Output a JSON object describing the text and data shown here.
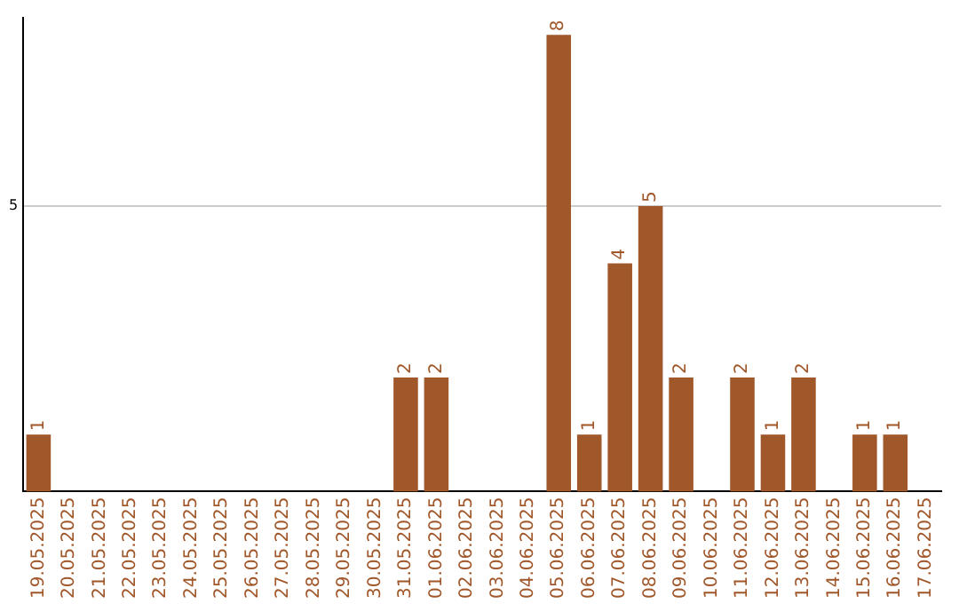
{
  "chart_data": {
    "type": "bar",
    "categories": [
      "19.05.2025",
      "20.05.2025",
      "21.05.2025",
      "22.05.2025",
      "23.05.2025",
      "24.05.2025",
      "25.05.2025",
      "26.05.2025",
      "27.05.2025",
      "28.05.2025",
      "29.05.2025",
      "30.05.2025",
      "31.05.2025",
      "01.06.2025",
      "02.06.2025",
      "03.06.2025",
      "04.06.2025",
      "05.06.2025",
      "06.06.2025",
      "07.06.2025",
      "08.06.2025",
      "09.06.2025",
      "10.06.2025",
      "11.06.2025",
      "12.06.2025",
      "13.06.2025",
      "14.06.2025",
      "15.06.2025",
      "16.06.2025",
      "17.06.2025"
    ],
    "values": [
      1,
      0,
      0,
      0,
      0,
      0,
      0,
      0,
      0,
      0,
      0,
      0,
      2,
      2,
      0,
      0,
      0,
      8,
      1,
      4,
      5,
      2,
      0,
      2,
      1,
      2,
      0,
      1,
      1,
      0
    ],
    "value_labels": [
      "1",
      null,
      null,
      null,
      null,
      null,
      null,
      null,
      null,
      null,
      null,
      null,
      "2",
      "2",
      null,
      null,
      null,
      "8",
      "1",
      "4",
      "5",
      "2",
      null,
      "2",
      "1",
      "2",
      null,
      "1",
      "1",
      null
    ],
    "color": "#a0572a",
    "ylim": [
      0,
      8.3
    ],
    "yticks": [
      5
    ],
    "grid": "y",
    "legend": false
  }
}
